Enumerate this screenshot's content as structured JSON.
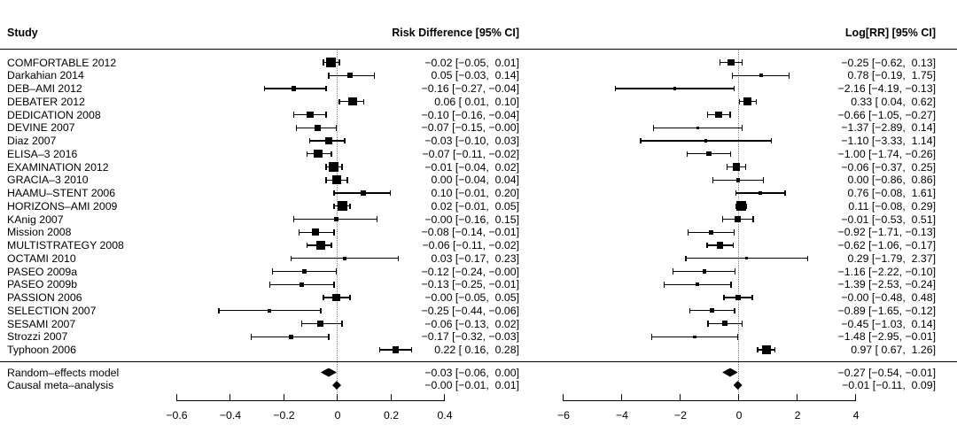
{
  "header": {
    "study_col": "Study",
    "rd_col": "Risk Difference [95% CI]",
    "rr_col": "Log[RR] [95% CI]"
  },
  "chart_data": {
    "type": "forest",
    "panels": [
      {
        "id": "rd",
        "title": "Risk Difference [95% CI]",
        "xlim": [
          -0.6,
          0.4
        ],
        "zero_line": 0,
        "ticks": [
          {
            "v": -0.6,
            "label": "−0.6"
          },
          {
            "v": -0.4,
            "label": "−0.4"
          },
          {
            "v": -0.2,
            "label": "−0.2"
          },
          {
            "v": 0,
            "label": "0"
          },
          {
            "v": 0.2,
            "label": "0.2"
          },
          {
            "v": 0.4,
            "label": "0.4"
          }
        ]
      },
      {
        "id": "rr",
        "title": "Log[RR] [95% CI]",
        "xlim": [
          -6,
          4
        ],
        "zero_line": 0,
        "ticks": [
          {
            "v": -6,
            "label": "−6"
          },
          {
            "v": -4,
            "label": "−4"
          },
          {
            "v": -2,
            "label": "−2"
          },
          {
            "v": 0,
            "label": "0"
          },
          {
            "v": 2,
            "label": "2"
          },
          {
            "v": 4,
            "label": "4"
          }
        ]
      }
    ],
    "studies": [
      {
        "name": "COMFORTABLE 2012",
        "rd": {
          "est": -0.02,
          "lb": -0.05,
          "ub": 0.01,
          "label": "−0.02 [−0.05,  0.01]"
        },
        "rr": {
          "est": -0.25,
          "lb": -0.62,
          "ub": 0.13,
          "label": "−0.25 [−0.62,  0.13]"
        }
      },
      {
        "name": "Darkahian 2014",
        "rd": {
          "est": 0.05,
          "lb": -0.03,
          "ub": 0.14,
          "label": "0.05 [−0.03,  0.14]"
        },
        "rr": {
          "est": 0.78,
          "lb": -0.19,
          "ub": 1.75,
          "label": "0.78 [−0.19,  1.75]"
        }
      },
      {
        "name": "DEB–AMI 2012",
        "rd": {
          "est": -0.16,
          "lb": -0.27,
          "ub": -0.04,
          "label": "−0.16 [−0.27, −0.04]"
        },
        "rr": {
          "est": -2.16,
          "lb": -4.19,
          "ub": -0.13,
          "label": "−2.16 [−4.19, −0.13]"
        }
      },
      {
        "name": "DEBATER 2012",
        "rd": {
          "est": 0.06,
          "lb": 0.01,
          "ub": 0.1,
          "label": "0.06 [ 0.01,  0.10]"
        },
        "rr": {
          "est": 0.33,
          "lb": 0.04,
          "ub": 0.62,
          "label": "0.33 [ 0.04,  0.62]"
        }
      },
      {
        "name": "DEDICATION 2008",
        "rd": {
          "est": -0.1,
          "lb": -0.16,
          "ub": -0.04,
          "label": "−0.10 [−0.16, −0.04]"
        },
        "rr": {
          "est": -0.66,
          "lb": -1.05,
          "ub": -0.27,
          "label": "−0.66 [−1.05, −0.27]"
        }
      },
      {
        "name": "DEVINE 2007",
        "rd": {
          "est": -0.07,
          "lb": -0.15,
          "ub": -0.001,
          "label": "−0.07 [−0.15, −0.00]"
        },
        "rr": {
          "est": -1.37,
          "lb": -2.89,
          "ub": 0.14,
          "label": "−1.37 [−2.89,  0.14]"
        }
      },
      {
        "name": "Diaz 2007",
        "rd": {
          "est": -0.03,
          "lb": -0.1,
          "ub": 0.03,
          "label": "−0.03 [−0.10,  0.03]"
        },
        "rr": {
          "est": -1.1,
          "lb": -3.33,
          "ub": 1.14,
          "label": "−1.10 [−3.33,  1.14]"
        }
      },
      {
        "name": "ELISA–3 2016",
        "rd": {
          "est": -0.07,
          "lb": -0.11,
          "ub": -0.02,
          "label": "−0.07 [−0.11, −0.02]"
        },
        "rr": {
          "est": -1.0,
          "lb": -1.74,
          "ub": -0.26,
          "label": "−1.00 [−1.74, −0.26]"
        }
      },
      {
        "name": "EXAMINATION 2012",
        "rd": {
          "est": -0.01,
          "lb": -0.04,
          "ub": 0.02,
          "label": "−0.01 [−0.04,  0.02]"
        },
        "rr": {
          "est": -0.06,
          "lb": -0.37,
          "ub": 0.25,
          "label": "−0.06 [−0.37,  0.25]"
        }
      },
      {
        "name": "GRACIA–3 2010",
        "rd": {
          "est": 0.0,
          "lb": -0.04,
          "ub": 0.04,
          "label": "0.00 [−0.04,  0.04]"
        },
        "rr": {
          "est": 0.0,
          "lb": -0.86,
          "ub": 0.86,
          "label": "0.00 [−0.86,  0.86]"
        }
      },
      {
        "name": "HAAMU–STENT 2006",
        "rd": {
          "est": 0.1,
          "lb": -0.01,
          "ub": 0.2,
          "label": "0.10 [−0.01,  0.20]"
        },
        "rr": {
          "est": 0.76,
          "lb": -0.08,
          "ub": 1.61,
          "label": "0.76 [−0.08,  1.61]"
        }
      },
      {
        "name": "HORIZONS–AMI 2009",
        "rd": {
          "est": 0.02,
          "lb": -0.01,
          "ub": 0.05,
          "label": "0.02 [−0.01,  0.05]"
        },
        "rr": {
          "est": 0.11,
          "lb": -0.08,
          "ub": 0.29,
          "label": "0.11 [−0.08,  0.29]"
        }
      },
      {
        "name": "KAnig 2007",
        "rd": {
          "est": -0.001,
          "lb": -0.16,
          "ub": 0.15,
          "label": "−0.00 [−0.16,  0.15]"
        },
        "rr": {
          "est": -0.01,
          "lb": -0.53,
          "ub": 0.51,
          "label": "−0.01 [−0.53,  0.51]"
        }
      },
      {
        "name": "Mission 2008",
        "rd": {
          "est": -0.08,
          "lb": -0.14,
          "ub": -0.01,
          "label": "−0.08 [−0.14, −0.01]"
        },
        "rr": {
          "est": -0.92,
          "lb": -1.71,
          "ub": -0.13,
          "label": "−0.92 [−1.71, −0.13]"
        }
      },
      {
        "name": "MULTISTRATEGY 2008",
        "rd": {
          "est": -0.06,
          "lb": -0.11,
          "ub": -0.02,
          "label": "−0.06 [−0.11, −0.02]"
        },
        "rr": {
          "est": -0.62,
          "lb": -1.06,
          "ub": -0.17,
          "label": "−0.62 [−1.06, −0.17]"
        }
      },
      {
        "name": "OCTAMI 2010",
        "rd": {
          "est": 0.03,
          "lb": -0.17,
          "ub": 0.23,
          "label": "0.03 [−0.17,  0.23]"
        },
        "rr": {
          "est": 0.29,
          "lb": -1.79,
          "ub": 2.37,
          "label": "0.29 [−1.79,  2.37]"
        }
      },
      {
        "name": "PASEO 2009a",
        "rd": {
          "est": -0.12,
          "lb": -0.24,
          "ub": -0.001,
          "label": "−0.12 [−0.24, −0.00]"
        },
        "rr": {
          "est": -1.16,
          "lb": -2.22,
          "ub": -0.1,
          "label": "−1.16 [−2.22, −0.10]"
        }
      },
      {
        "name": "PASEO 2009b",
        "rd": {
          "est": -0.13,
          "lb": -0.25,
          "ub": -0.01,
          "label": "−0.13 [−0.25, −0.01]"
        },
        "rr": {
          "est": -1.39,
          "lb": -2.53,
          "ub": -0.24,
          "label": "−1.39 [−2.53, −0.24]"
        }
      },
      {
        "name": "PASSION 2006",
        "rd": {
          "est": -0.001,
          "lb": -0.05,
          "ub": 0.05,
          "label": "−0.00 [−0.05,  0.05]"
        },
        "rr": {
          "est": -0.001,
          "lb": -0.48,
          "ub": 0.48,
          "label": "−0.00 [−0.48,  0.48]"
        }
      },
      {
        "name": "SELECTION 2007",
        "rd": {
          "est": -0.25,
          "lb": -0.44,
          "ub": -0.06,
          "label": "−0.25 [−0.44, −0.06]"
        },
        "rr": {
          "est": -0.89,
          "lb": -1.65,
          "ub": -0.12,
          "label": "−0.89 [−1.65, −0.12]"
        }
      },
      {
        "name": "SESAMI 2007",
        "rd": {
          "est": -0.06,
          "lb": -0.13,
          "ub": 0.02,
          "label": "−0.06 [−0.13,  0.02]"
        },
        "rr": {
          "est": -0.45,
          "lb": -1.03,
          "ub": 0.14,
          "label": "−0.45 [−1.03,  0.14]"
        }
      },
      {
        "name": "Strozzi 2007",
        "rd": {
          "est": -0.17,
          "lb": -0.32,
          "ub": -0.03,
          "label": "−0.17 [−0.32, −0.03]"
        },
        "rr": {
          "est": -1.48,
          "lb": -2.95,
          "ub": -0.01,
          "label": "−1.48 [−2.95, −0.01]"
        }
      },
      {
        "name": "Typhoon 2006",
        "rd": {
          "est": 0.22,
          "lb": 0.16,
          "ub": 0.28,
          "label": "0.22 [ 0.16,  0.28]"
        },
        "rr": {
          "est": 0.97,
          "lb": 0.67,
          "ub": 1.26,
          "label": "0.97 [ 0.67,  1.26]"
        }
      }
    ],
    "summaries": [
      {
        "name": "Random–effects model",
        "rd": {
          "est": -0.03,
          "lb": -0.06,
          "ub": 0.0,
          "label": "−0.03 [−0.06,  0.00]"
        },
        "rr": {
          "est": -0.27,
          "lb": -0.54,
          "ub": -0.01,
          "label": "−0.27 [−0.54, −0.01]"
        }
      },
      {
        "name": "Causal meta–analysis",
        "rd": {
          "est": -0.001,
          "lb": -0.01,
          "ub": 0.01,
          "label": "−0.00 [−0.01,  0.01]"
        },
        "rr": {
          "est": -0.01,
          "lb": -0.11,
          "ub": 0.09,
          "label": "−0.01 [−0.11,  0.09]"
        }
      }
    ]
  }
}
